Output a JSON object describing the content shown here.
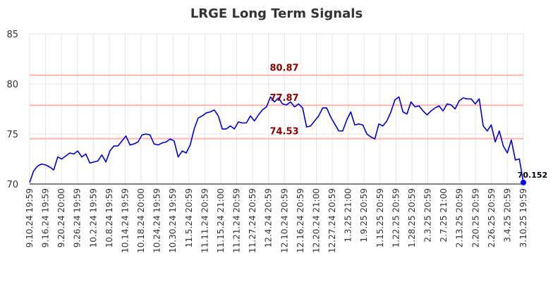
{
  "chart_data": {
    "type": "line",
    "title": "LRGE Long Term Signals",
    "xlabel": "",
    "ylabel": "",
    "ylim": [
      70,
      85
    ],
    "y_ticks": [
      70,
      75,
      80,
      85
    ],
    "grid": true,
    "colors": {
      "line": "#0000cc",
      "hline": "#ffb3b3",
      "hlabel": "#8b0000",
      "last_point": "#0000ff"
    },
    "x_tick_labels": [
      "9.10.24 19:59",
      "9.16.24 19:59",
      "9.20.24 20:00",
      "9.26.24 19:59",
      "10.2.24 19:59",
      "10.8.24 19:59",
      "10.14.24 19:59",
      "10.18.24 20:00",
      "10.24.24 19:59",
      "10.30.24 19:59",
      "11.5.24 20:59",
      "11.11.24 20:59",
      "11.15.24 21:00",
      "11.21.24 20:59",
      "11.27.24 20:59",
      "12.4.24 20:59",
      "12.10.24 20:59",
      "12.16.24 20:59",
      "12.20.24 21:00",
      "12.27.24 20:59",
      "1.3.25 21:00",
      "1.9.25 20:59",
      "1.15.25 20:59",
      "1.22.25 20:59",
      "1.28.25 20:59",
      "2.3.25 20:59",
      "2.7.25 21:00",
      "2.13.25 20:59",
      "2.20.25 20:59",
      "2.26.25 20:59",
      "3.4.25 20:59",
      "3.10.25 19:59"
    ],
    "horizontal_lines": [
      {
        "value": 80.87,
        "label": "80.87"
      },
      {
        "value": 77.87,
        "label": "77.87"
      },
      {
        "value": 74.53,
        "label": "74.53"
      }
    ],
    "last_value_label": "70.152",
    "series": [
      {
        "values": [
          70.15,
          71.3,
          71.8,
          72.0,
          71.9,
          71.7,
          71.4,
          72.7,
          72.5,
          72.8,
          73.1,
          73.0,
          73.3,
          72.7,
          73.0,
          72.1,
          72.2,
          72.3,
          72.9,
          72.2,
          73.3,
          73.8,
          73.8,
          74.3,
          74.8,
          73.9,
          74.0,
          74.2,
          74.9,
          75.0,
          74.9,
          74.0,
          73.9,
          74.1,
          74.2,
          74.5,
          74.3,
          72.7,
          73.3,
          73.1,
          73.9,
          75.5,
          76.6,
          76.8,
          77.1,
          77.2,
          77.4,
          76.8,
          75.5,
          75.5,
          75.8,
          75.5,
          76.2,
          76.1,
          76.1,
          76.8,
          76.3,
          76.9,
          77.4,
          77.7,
          78.7,
          78.2,
          78.6,
          78.0,
          77.9,
          78.2,
          77.7,
          78.0,
          77.6,
          75.7,
          75.8,
          76.3,
          76.8,
          77.6,
          77.6,
          76.7,
          76.0,
          75.3,
          75.3,
          76.4,
          77.2,
          75.9,
          76.0,
          75.9,
          75.0,
          74.7,
          74.5,
          76.0,
          75.8,
          76.3,
          77.2,
          78.4,
          78.7,
          77.2,
          77.0,
          78.2,
          77.7,
          77.8,
          77.3,
          76.9,
          77.3,
          77.6,
          77.8,
          77.3,
          78.0,
          77.9,
          77.5,
          78.3,
          78.6,
          78.5,
          78.5,
          78.0,
          78.5,
          75.8,
          75.3,
          75.9,
          74.2,
          75.3,
          73.8,
          73.1,
          74.4,
          72.4,
          72.5,
          70.152
        ]
      }
    ]
  }
}
